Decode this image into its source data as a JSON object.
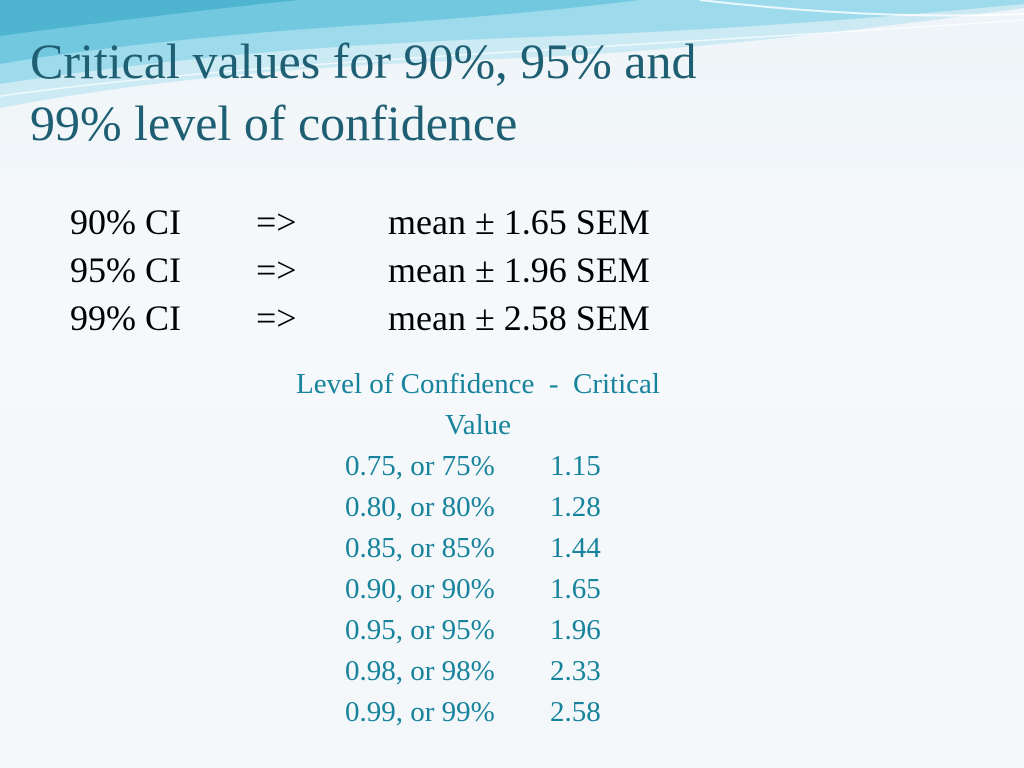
{
  "slide": {
    "title_line1": "Critical values for 90%, 95% and",
    "title_line2": "99% level of confidence"
  },
  "ci_rows": [
    {
      "level": "90% CI",
      "arrow": "=>",
      "formula": "mean ± 1.65 SEM"
    },
    {
      "level": "95% CI",
      "arrow": "=>",
      "formula": "mean ± 1.96 SEM"
    },
    {
      "level": "99% CI",
      "arrow": "=>",
      "formula": "mean ± 2.58 SEM"
    }
  ],
  "critical_table": {
    "header_line1": "Level of Confidence  -  Critical",
    "header_line2": "Value",
    "rows": [
      {
        "level": "0.75, or 75%",
        "value": "1.15"
      },
      {
        "level": "0.80, or 80%",
        "value": "1.28"
      },
      {
        "level": "0.85, or 85%",
        "value": "1.44"
      },
      {
        "level": "0.90, or 90%",
        "value": "1.65"
      },
      {
        "level": "0.95, or 95%",
        "value": "1.96"
      },
      {
        "level": "0.98, or 98%",
        "value": "2.33"
      },
      {
        "level": "0.99, or 99%",
        "value": "2.58"
      }
    ]
  },
  "colors": {
    "title": "#1f5f73",
    "table_text": "#17839c",
    "body_text": "#000000",
    "wave_light": "#bfe6f2",
    "wave_mid": "#7fd0e6",
    "wave_dark": "#3fb3d1"
  }
}
